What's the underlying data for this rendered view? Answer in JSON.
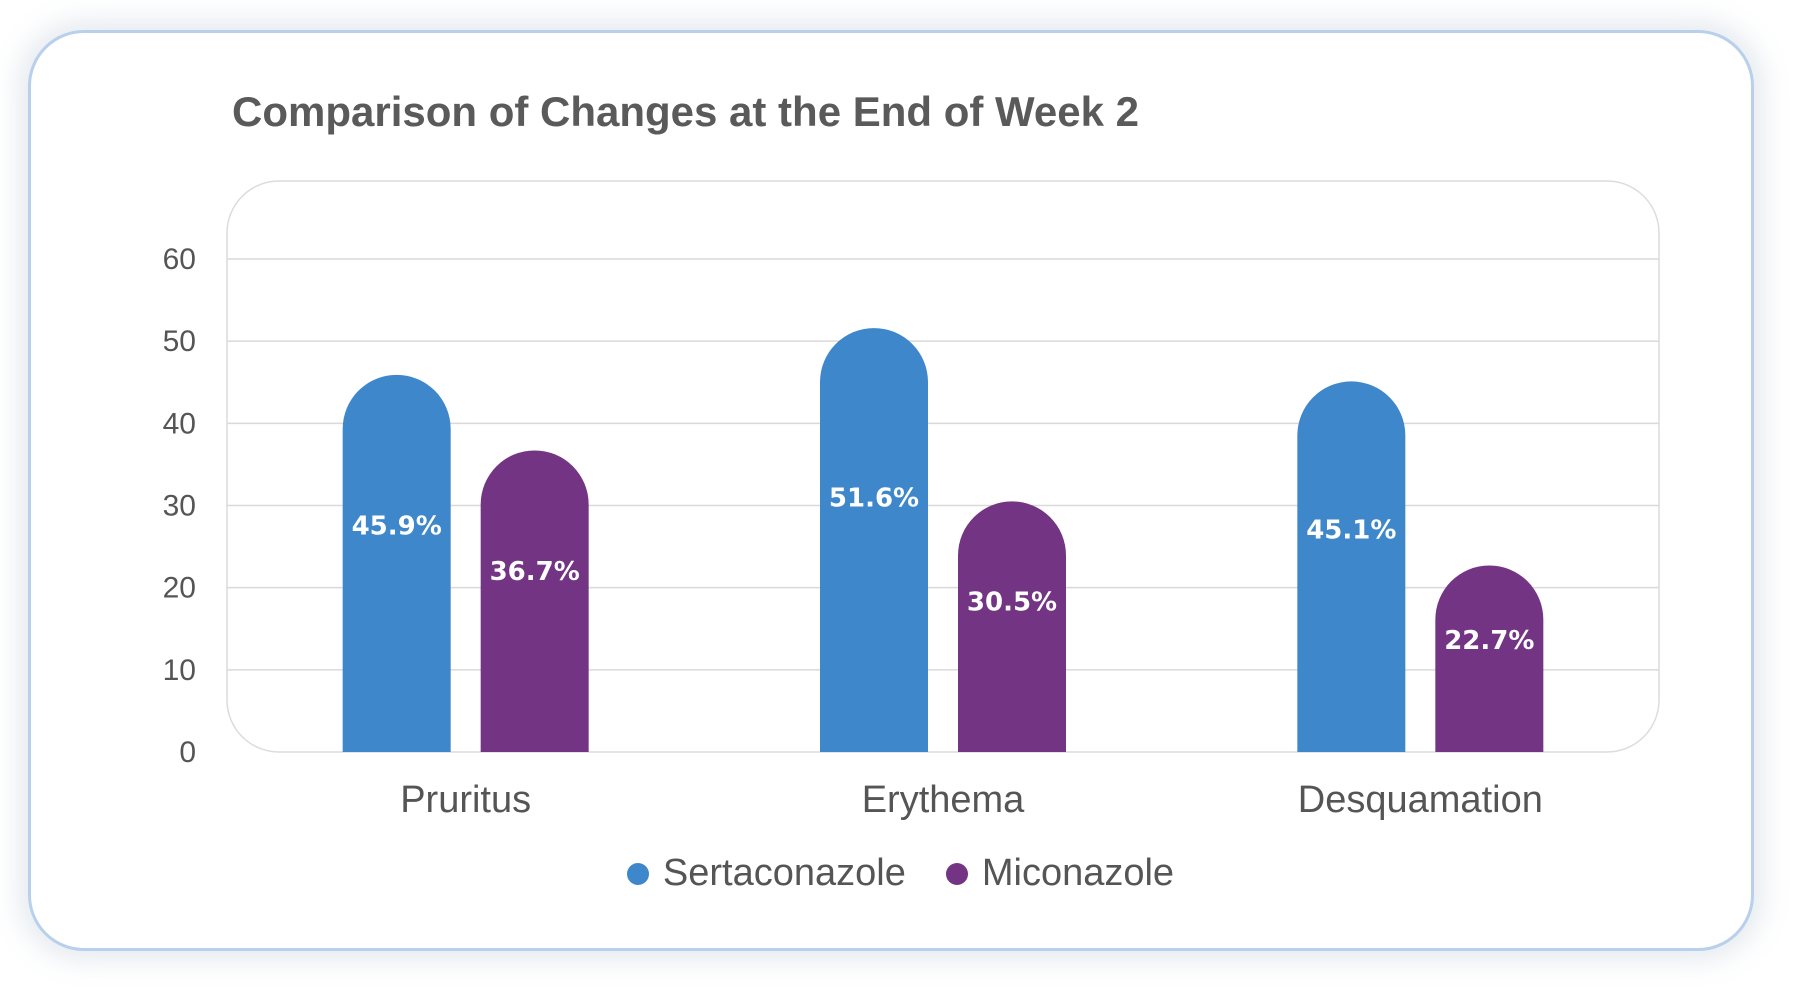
{
  "chart_data": {
    "type": "bar",
    "title": "Comparison of Changes at the End of Week 2",
    "categories": [
      "Pruritus",
      "Erythema",
      "Desquamation"
    ],
    "series": [
      {
        "name": "Sertaconazole",
        "color": "#3e87cb",
        "values": [
          45.9,
          51.6,
          45.1
        ],
        "labels": [
          "45.9%",
          "51.6%",
          "45.1%"
        ]
      },
      {
        "name": "Miconazole",
        "color": "#733583",
        "values": [
          36.7,
          30.5,
          22.7
        ],
        "labels": [
          "36.7%",
          "30.5%",
          "22.7%"
        ]
      }
    ],
    "yticks": [
      "0",
      "10",
      "20",
      "30",
      "40",
      "50",
      "60"
    ],
    "ylim": [
      0,
      60
    ],
    "grid": true,
    "legend": "bottom"
  }
}
